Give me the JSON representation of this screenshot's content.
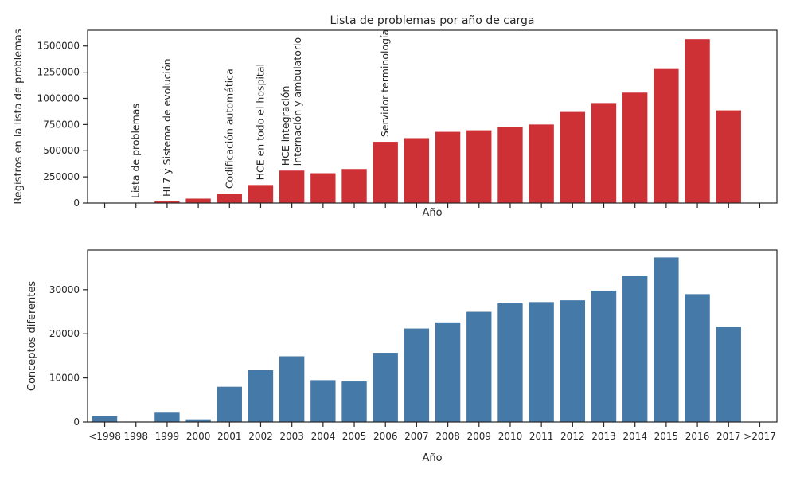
{
  "colors": {
    "top_bar": "#cd3035",
    "bottom_bar": "#4579a8",
    "axis": "#262626",
    "text": "#262626"
  },
  "chart_data": [
    {
      "type": "bar",
      "title": "Lista de problemas por año de carga",
      "xlabel": "Año",
      "ylabel": "Registros en la lista de problemas",
      "ylim": [
        0,
        1650000
      ],
      "yticks": [
        0,
        250000,
        500000,
        750000,
        1000000,
        1250000,
        1500000
      ],
      "ytick_labels": [
        "0",
        "250000",
        "500000",
        "750000",
        "1000000",
        "1250000",
        "1500000"
      ],
      "categories": [
        "<1998",
        "1998",
        "1999",
        "2000",
        "2001",
        "2002",
        "2003",
        "2004",
        "2005",
        "2006",
        "2007",
        "2008",
        "2009",
        "2010",
        "2011",
        "2012",
        "2013",
        "2014",
        "2015",
        "2016",
        "2017",
        ">2017"
      ],
      "values": [
        0,
        0,
        15000,
        42000,
        90000,
        172000,
        310000,
        285000,
        325000,
        585000,
        620000,
        680000,
        695000,
        725000,
        750000,
        870000,
        955000,
        1055000,
        1280000,
        1565000,
        885000,
        0
      ],
      "tick_labels_visible": false,
      "grid": false,
      "annotations": [
        {
          "category": "1998",
          "lines": [
            "Lista de problemas"
          ]
        },
        {
          "category": "1999",
          "lines": [
            "HL7 y Sistema de evolución"
          ]
        },
        {
          "category": "2001",
          "lines": [
            "Codificación automática"
          ]
        },
        {
          "category": "2002",
          "lines": [
            "HCE en todo el hospital"
          ]
        },
        {
          "category": "2003",
          "lines": [
            "HCE integración",
            "internación y ambulatorio"
          ]
        },
        {
          "category": "2006",
          "lines": [
            "Servidor terminología"
          ]
        }
      ]
    },
    {
      "type": "bar",
      "title": "",
      "xlabel": "Año",
      "ylabel": "Conceptos diferentes",
      "ylim": [
        0,
        39000
      ],
      "yticks": [
        0,
        10000,
        20000,
        30000
      ],
      "ytick_labels": [
        "0",
        "10000",
        "20000",
        "30000"
      ],
      "categories": [
        "<1998",
        "1998",
        "1999",
        "2000",
        "2001",
        "2002",
        "2003",
        "2004",
        "2005",
        "2006",
        "2007",
        "2008",
        "2009",
        "2010",
        "2011",
        "2012",
        "2013",
        "2014",
        "2015",
        "2016",
        "2017",
        ">2017"
      ],
      "values": [
        1300,
        100,
        2300,
        600,
        8000,
        11800,
        14900,
        9500,
        9200,
        15700,
        21200,
        22600,
        25000,
        26900,
        27200,
        27600,
        29800,
        33200,
        37300,
        29000,
        21600,
        0
      ],
      "tick_labels_visible": true,
      "grid": false
    }
  ]
}
